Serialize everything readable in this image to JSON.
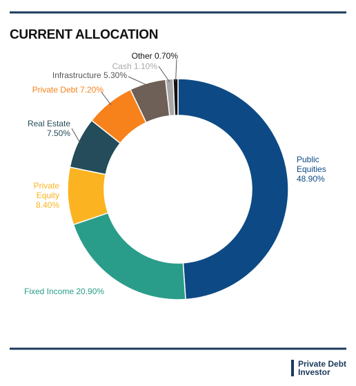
{
  "chart_data": {
    "type": "donut",
    "title": "CURRENT ALLOCATION",
    "categories": [
      "Public Equities",
      "Fixed Income",
      "Private Equity",
      "Real Estate",
      "Private Debt",
      "Infrastructure",
      "Cash",
      "Other"
    ],
    "values": [
      48.9,
      20.9,
      8.4,
      7.5,
      7.2,
      5.3,
      1.1,
      0.7
    ],
    "value_labels": [
      "48.90%",
      "20.90%",
      "8.40%",
      "7.50%",
      "7.20%",
      "5.30%",
      "1.10%",
      "0.70%"
    ],
    "colors": [
      "#0d4a85",
      "#2a9d8a",
      "#fbb321",
      "#244c5a",
      "#f7821b",
      "#6e6057",
      "#a8a8a8",
      "#111111"
    ]
  },
  "logo": {
    "line1": "Private Debt",
    "line2": "Investor"
  }
}
